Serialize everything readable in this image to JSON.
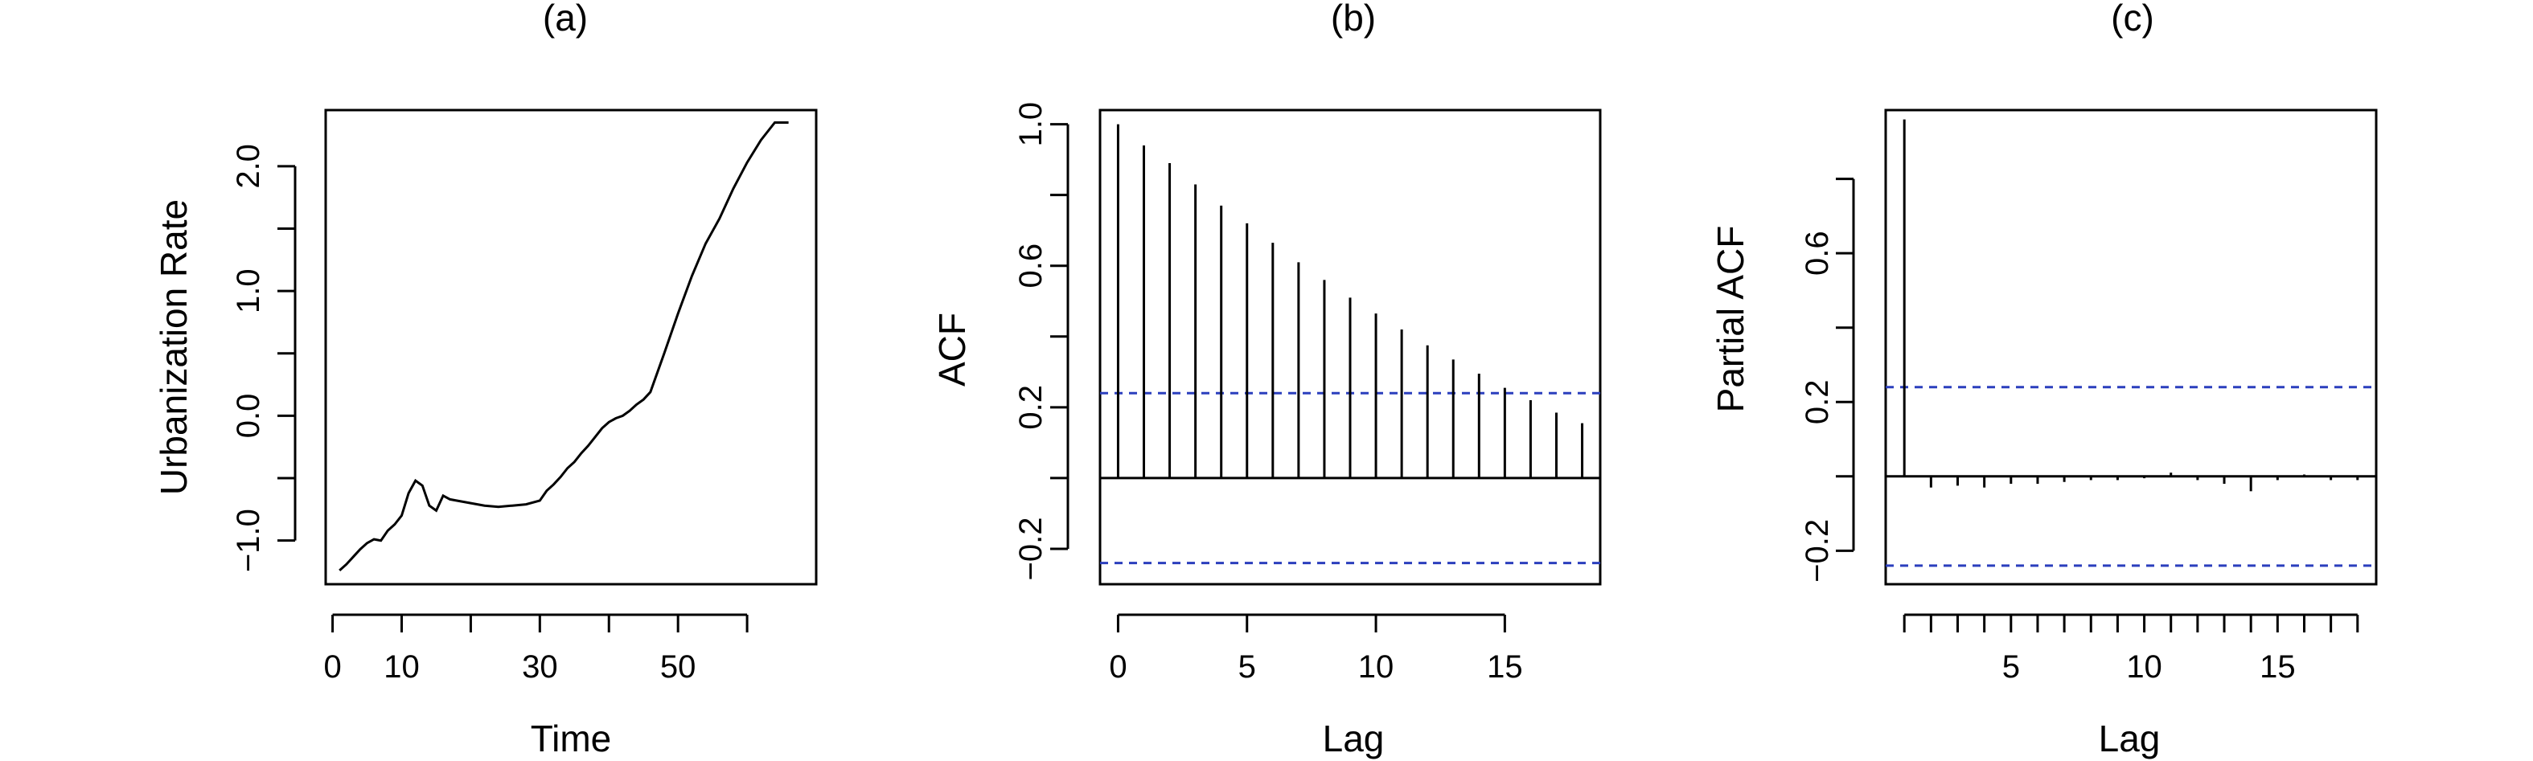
{
  "colors": {
    "confidence_band": "#2b3fbd",
    "ink": "#000000"
  },
  "chart_data": [
    {
      "type": "line",
      "title": "(a)",
      "xlabel": "Time",
      "ylabel": "Urbanization Rate",
      "xlim": [
        -1,
        70
      ],
      "ylim": [
        -1.35,
        2.45
      ],
      "xticks": [
        0,
        10,
        30,
        50
      ],
      "xticks_minor": [
        20,
        40,
        60
      ],
      "yticks": [
        -1.0,
        0.0,
        1.0,
        2.0
      ],
      "yticks_minor": [
        -0.5,
        0.5,
        1.5
      ],
      "ytick_labels": [
        "−1.0",
        "0.0",
        "1.0",
        "2.0"
      ],
      "series": [
        {
          "x": [
            1,
            2,
            3,
            4,
            5,
            6,
            7,
            8,
            9,
            10,
            11,
            12,
            13,
            14,
            15,
            16,
            17,
            18,
            20,
            22,
            24,
            26,
            28,
            30,
            31,
            32,
            33,
            34,
            35,
            36,
            37,
            38,
            39,
            40,
            41,
            42,
            43,
            44,
            45,
            46,
            48,
            50,
            52,
            54,
            56,
            58,
            60,
            62,
            64,
            66
          ],
          "y": [
            -1.24,
            -1.19,
            -1.13,
            -1.07,
            -1.02,
            -0.99,
            -1.0,
            -0.92,
            -0.87,
            -0.8,
            -0.62,
            -0.52,
            -0.56,
            -0.72,
            -0.76,
            -0.64,
            -0.67,
            -0.68,
            -0.7,
            -0.72,
            -0.73,
            -0.72,
            -0.71,
            -0.68,
            -0.6,
            -0.55,
            -0.49,
            -0.42,
            -0.37,
            -0.3,
            -0.24,
            -0.17,
            -0.1,
            -0.05,
            -0.02,
            0.0,
            0.04,
            0.09,
            0.13,
            0.19,
            0.5,
            0.82,
            1.12,
            1.38,
            1.58,
            1.82,
            2.03,
            2.21,
            2.35,
            2.35
          ]
        }
      ]
    },
    {
      "type": "bar",
      "title": "(b)",
      "xlabel": "Lag",
      "ylabel": "ACF",
      "xlim": [
        -0.7,
        18.7
      ],
      "ylim": [
        -0.3,
        1.04
      ],
      "xticks": [
        0,
        5,
        10,
        15
      ],
      "yticks": [
        -0.2,
        0.2,
        0.6,
        1.0
      ],
      "yticks_minor": [
        0.0,
        0.4,
        0.8
      ],
      "ytick_labels": [
        "−0.2",
        "0.2",
        "0.6",
        "1.0"
      ],
      "lags": [
        0,
        1,
        2,
        3,
        4,
        5,
        6,
        7,
        8,
        9,
        10,
        11,
        12,
        13,
        14,
        15,
        16,
        17,
        18
      ],
      "values": [
        1.0,
        0.94,
        0.89,
        0.83,
        0.77,
        0.72,
        0.665,
        0.61,
        0.56,
        0.51,
        0.465,
        0.42,
        0.375,
        0.335,
        0.295,
        0.255,
        0.22,
        0.185,
        0.155
      ],
      "confidence": 0.24
    },
    {
      "type": "bar",
      "title": "(c)",
      "xlabel": "Lag",
      "ylabel": "Partial ACF",
      "xlim": [
        0.3,
        18.7
      ],
      "ylim": [
        -0.29,
        0.985
      ],
      "xticks": [
        5,
        10,
        15
      ],
      "xticks_minor": [
        1,
        2,
        3,
        4,
        6,
        7,
        8,
        9,
        11,
        12,
        13,
        14,
        16,
        17,
        18
      ],
      "yticks": [
        -0.2,
        0.2,
        0.6
      ],
      "yticks_minor": [
        0.0,
        0.4,
        0.8
      ],
      "ytick_labels": [
        "−0.2",
        "0.2",
        "0.6"
      ],
      "lags": [
        1,
        2,
        3,
        4,
        5,
        6,
        7,
        8,
        9,
        10,
        11,
        12,
        13,
        14,
        15,
        16,
        17,
        18
      ],
      "values": [
        0.96,
        -0.03,
        -0.025,
        -0.03,
        -0.02,
        -0.02,
        -0.015,
        -0.01,
        -0.01,
        -0.005,
        0.01,
        -0.01,
        -0.02,
        -0.04,
        -0.01,
        0.005,
        -0.01,
        -0.01
      ],
      "confidence": 0.24
    }
  ]
}
